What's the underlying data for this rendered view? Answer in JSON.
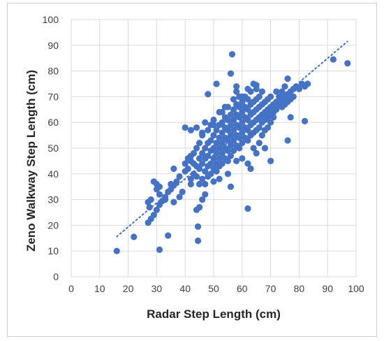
{
  "chart_data": {
    "type": "scatter",
    "title": "",
    "xlabel": "Radar Step Length (cm)",
    "ylabel": "Zeno Walkway Step Length (cm)",
    "xlim": [
      0,
      100
    ],
    "ylim": [
      0,
      100
    ],
    "x_ticks": [
      "0",
      "10",
      "20",
      "30",
      "40",
      "50",
      "60",
      "70",
      "80",
      "90",
      "100"
    ],
    "y_ticks": [
      "0",
      "10",
      "20",
      "30",
      "40",
      "50",
      "60",
      "70",
      "80",
      "90",
      "100"
    ],
    "grid": true,
    "legend": "none",
    "colors": {
      "points": "#4472c4",
      "trendline": "#4472c4",
      "grid": "#d9d9d9"
    },
    "trendline": {
      "style": "dotted",
      "x": [
        16,
        97
      ],
      "y": [
        15.6,
        91.5
      ]
    },
    "series": [
      {
        "points": [
          [
            16,
            10
          ],
          [
            22,
            15.5
          ],
          [
            31,
            10.5
          ],
          [
            34,
            16
          ],
          [
            44.5,
            14
          ],
          [
            44.5,
            19.5
          ],
          [
            62,
            26.5
          ],
          [
            27,
            29
          ],
          [
            28,
            30
          ],
          [
            27.5,
            27
          ],
          [
            27,
            21
          ],
          [
            28,
            22.5
          ],
          [
            29,
            24
          ],
          [
            30,
            26
          ],
          [
            31,
            28
          ],
          [
            32,
            29.5
          ],
          [
            33,
            31
          ],
          [
            34,
            33
          ],
          [
            35,
            34
          ],
          [
            36,
            35.5
          ],
          [
            35,
            36
          ],
          [
            33,
            30
          ],
          [
            31,
            32
          ],
          [
            30,
            34
          ],
          [
            29,
            37
          ],
          [
            30,
            36
          ],
          [
            31,
            35
          ],
          [
            36,
            29
          ],
          [
            38,
            31
          ],
          [
            39,
            33
          ],
          [
            37,
            37
          ],
          [
            38,
            39
          ],
          [
            36,
            42
          ],
          [
            40,
            41
          ],
          [
            42,
            36
          ],
          [
            44,
            26
          ],
          [
            45,
            27
          ],
          [
            46,
            30
          ],
          [
            47,
            32
          ],
          [
            40,
            44
          ],
          [
            41,
            46
          ],
          [
            41,
            42
          ],
          [
            42,
            45
          ],
          [
            42,
            38
          ],
          [
            42,
            47
          ],
          [
            43,
            40
          ],
          [
            43,
            44
          ],
          [
            43,
            48
          ],
          [
            44,
            50
          ],
          [
            44,
            43
          ],
          [
            44,
            39
          ],
          [
            45,
            42
          ],
          [
            45,
            46
          ],
          [
            45,
            52
          ],
          [
            45,
            36
          ],
          [
            46,
            44
          ],
          [
            46,
            48
          ],
          [
            46,
            38
          ],
          [
            46,
            55
          ],
          [
            47,
            41
          ],
          [
            47,
            46
          ],
          [
            47,
            50
          ],
          [
            47,
            36
          ],
          [
            48,
            43
          ],
          [
            48,
            47
          ],
          [
            48,
            52
          ],
          [
            48,
            57
          ],
          [
            48,
            39
          ],
          [
            49,
            44
          ],
          [
            49,
            49
          ],
          [
            49,
            53
          ],
          [
            49,
            40
          ],
          [
            49,
            59
          ],
          [
            50,
            42
          ],
          [
            50,
            46
          ],
          [
            50,
            50
          ],
          [
            50,
            55
          ],
          [
            50,
            37
          ],
          [
            50,
            61
          ],
          [
            51,
            44
          ],
          [
            51,
            48
          ],
          [
            51,
            52
          ],
          [
            51,
            57
          ],
          [
            51,
            41
          ],
          [
            52,
            46
          ],
          [
            52,
            50
          ],
          [
            52,
            54
          ],
          [
            52,
            59
          ],
          [
            52,
            43
          ],
          [
            52,
            38
          ],
          [
            53,
            48
          ],
          [
            53,
            52
          ],
          [
            53,
            56
          ],
          [
            53,
            60
          ],
          [
            53,
            44
          ],
          [
            53,
            64
          ],
          [
            54,
            50
          ],
          [
            54,
            54
          ],
          [
            54,
            58
          ],
          [
            54,
            46
          ],
          [
            54,
            62
          ],
          [
            55,
            49
          ],
          [
            55,
            53
          ],
          [
            55,
            57
          ],
          [
            55,
            61
          ],
          [
            55,
            45
          ],
          [
            55,
            66
          ],
          [
            55,
            40
          ],
          [
            56,
            51
          ],
          [
            56,
            55
          ],
          [
            56,
            59
          ],
          [
            56,
            63
          ],
          [
            56,
            47
          ],
          [
            56,
            35
          ],
          [
            57,
            53
          ],
          [
            57,
            57
          ],
          [
            57,
            61
          ],
          [
            57,
            65
          ],
          [
            57,
            49
          ],
          [
            57,
            69
          ],
          [
            58,
            55
          ],
          [
            58,
            59
          ],
          [
            58,
            63
          ],
          [
            58,
            51
          ],
          [
            58,
            67
          ],
          [
            58,
            45
          ],
          [
            59,
            54
          ],
          [
            59,
            58
          ],
          [
            59,
            62
          ],
          [
            59,
            66
          ],
          [
            59,
            50
          ],
          [
            59,
            70
          ],
          [
            60,
            56
          ],
          [
            60,
            60
          ],
          [
            60,
            64
          ],
          [
            60,
            52
          ],
          [
            60,
            68
          ],
          [
            60,
            46
          ],
          [
            61,
            58
          ],
          [
            61,
            62
          ],
          [
            61,
            66
          ],
          [
            61,
            54
          ],
          [
            61,
            70
          ],
          [
            62,
            57
          ],
          [
            62,
            61
          ],
          [
            62,
            65
          ],
          [
            62,
            53
          ],
          [
            62,
            69
          ],
          [
            62,
            44
          ],
          [
            63,
            59
          ],
          [
            63,
            63
          ],
          [
            63,
            67
          ],
          [
            63,
            55
          ],
          [
            63,
            72
          ],
          [
            63,
            42
          ],
          [
            64,
            60
          ],
          [
            64,
            64
          ],
          [
            64,
            68
          ],
          [
            64,
            56
          ],
          [
            64,
            50
          ],
          [
            65,
            61
          ],
          [
            65,
            65
          ],
          [
            65,
            69
          ],
          [
            65,
            57
          ],
          [
            65,
            73
          ],
          [
            65,
            48
          ],
          [
            66,
            62
          ],
          [
            66,
            66
          ],
          [
            66,
            70
          ],
          [
            66,
            58
          ],
          [
            66,
            52
          ],
          [
            67,
            63
          ],
          [
            67,
            67
          ],
          [
            67,
            60
          ],
          [
            67,
            72
          ],
          [
            67,
            55
          ],
          [
            68,
            64
          ],
          [
            68,
            68
          ],
          [
            68,
            61
          ],
          [
            68,
            57
          ],
          [
            68,
            50
          ],
          [
            69,
            65
          ],
          [
            69,
            69
          ],
          [
            69,
            62
          ],
          [
            69,
            58
          ],
          [
            70,
            66
          ],
          [
            70,
            70
          ],
          [
            70,
            63
          ],
          [
            70,
            60
          ],
          [
            70,
            45
          ],
          [
            71,
            67
          ],
          [
            71,
            64
          ],
          [
            71,
            62
          ],
          [
            72,
            68
          ],
          [
            72,
            65
          ],
          [
            72,
            72
          ],
          [
            73,
            67
          ],
          [
            73,
            70
          ],
          [
            74,
            66
          ],
          [
            74,
            69
          ],
          [
            74,
            72
          ],
          [
            75,
            70
          ],
          [
            75,
            67
          ],
          [
            75,
            74
          ],
          [
            76,
            71
          ],
          [
            76,
            68
          ],
          [
            76,
            77
          ],
          [
            76,
            53
          ],
          [
            77,
            72
          ],
          [
            77,
            69
          ],
          [
            77,
            62
          ],
          [
            78,
            73
          ],
          [
            78,
            70
          ],
          [
            79,
            74
          ],
          [
            80,
            73
          ],
          [
            81,
            75
          ],
          [
            82,
            74
          ],
          [
            82,
            60.5
          ],
          [
            83,
            75
          ],
          [
            48,
            71
          ],
          [
            51,
            75
          ],
          [
            56,
            79
          ],
          [
            56.5,
            86.5
          ],
          [
            58,
            74
          ],
          [
            62,
            73
          ],
          [
            64,
            75
          ],
          [
            65,
            74.5
          ],
          [
            40,
            58
          ],
          [
            42,
            57
          ],
          [
            44,
            58
          ],
          [
            46,
            56
          ],
          [
            50,
            59
          ],
          [
            52,
            64
          ],
          [
            54,
            66
          ],
          [
            47,
            60
          ],
          [
            60,
            70
          ],
          [
            58,
            72
          ],
          [
            92,
            84.5
          ],
          [
            97,
            83
          ]
        ]
      }
    ]
  }
}
